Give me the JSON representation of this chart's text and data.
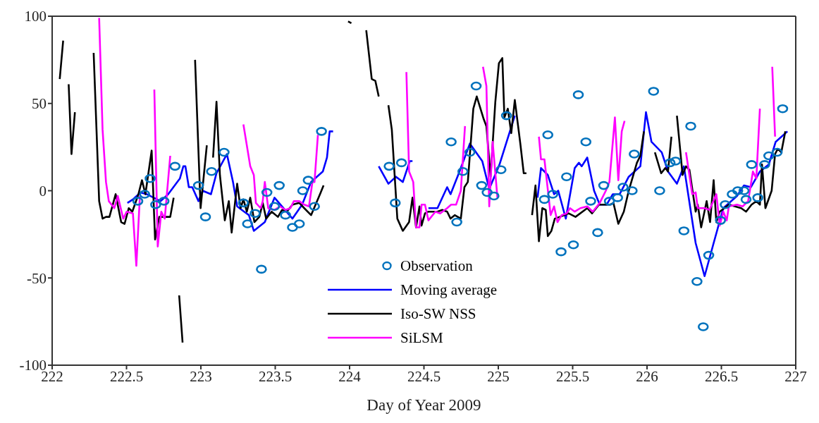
{
  "chart_data": {
    "type": "line",
    "xlabel": "Day of Year 2009",
    "xlim": [
      222,
      227
    ],
    "xticks": [
      222,
      222.5,
      223,
      223.5,
      224,
      224.5,
      225,
      225.5,
      226,
      226.5,
      227
    ],
    "ylim": [
      -100,
      100
    ],
    "yticks": [
      -100,
      -50,
      0,
      50,
      100
    ],
    "grid": false,
    "legend": "bottom",
    "series": [
      {
        "name": "Observation",
        "type": "scatter",
        "marker": "circle",
        "color": "#0072bd",
        "x": [
          222.576,
          222.622,
          222.659,
          222.696,
          222.752,
          222.826,
          222.984,
          223.031,
          223.072,
          223.156,
          223.286,
          223.314,
          223.365,
          223.407,
          223.444,
          223.495,
          223.527,
          223.569,
          223.616,
          223.662,
          223.685,
          223.722,
          223.764,
          223.811,
          224.266,
          224.307,
          224.349,
          224.683,
          224.721,
          224.762,
          224.809,
          224.851,
          224.888,
          224.925,
          224.971,
          225.018,
          225.055,
          225.31,
          225.333,
          225.366,
          225.422,
          225.459,
          225.505,
          225.538,
          225.589,
          225.621,
          225.668,
          225.709,
          225.747,
          225.802,
          225.839,
          225.9,
          225.914,
          226.044,
          226.085,
          226.155,
          226.192,
          226.248,
          226.294,
          226.336,
          226.378,
          226.415,
          226.494,
          226.526,
          226.573,
          226.61,
          226.652,
          226.666,
          226.703,
          226.745,
          226.791,
          226.819,
          226.875,
          226.912
        ],
        "values": [
          -6,
          -2,
          7,
          -8,
          -6,
          14,
          3,
          -15,
          11,
          22,
          -7,
          -19,
          -13,
          -45,
          -1,
          -9,
          3,
          -14,
          -21,
          -19,
          0,
          6,
          -9,
          34,
          14,
          -7,
          16,
          28,
          -18,
          11,
          22,
          60,
          3,
          -1,
          -3,
          12,
          43,
          -5,
          32,
          -2,
          -35,
          8,
          -31,
          55,
          28,
          -6,
          -24,
          3,
          -6,
          -4,
          2,
          0,
          21,
          57,
          0,
          16,
          17,
          -23,
          37,
          -52,
          -78,
          -37,
          -17,
          -8,
          -2,
          0,
          0,
          -5,
          15,
          -4,
          15,
          20,
          22,
          47
        ]
      },
      {
        "name": "Moving average",
        "marker": "none",
        "color": "#0000ff",
        "x": [
          222.506,
          222.543,
          222.594,
          222.636,
          222.729,
          222.78,
          222.859,
          222.882,
          222.896,
          222.919,
          222.942,
          222.984,
          223.012,
          223.068,
          223.105,
          223.175,
          223.216,
          223.244,
          223.291,
          223.323,
          223.356,
          223.43,
          223.495,
          223.616,
          223.681,
          223.741,
          223.82,
          223.848,
          223.866,
          223.889,
          224.04,
          224.196,
          224.261,
          224.312,
          224.358,
          224.405,
          224.423,
          224.48,
          224.53,
          224.591,
          224.656,
          224.679,
          224.73,
          224.809,
          224.892,
          224.939,
          225.008,
          225.111,
          225.19,
          225.264,
          225.287,
          225.333,
          225.375,
          225.403,
          225.454,
          225.514,
          225.542,
          225.561,
          225.598,
          225.644,
          225.682,
          225.728,
          225.77,
          225.816,
          225.877,
          225.955,
          225.993,
          226.03,
          226.099,
          226.141,
          226.201,
          226.248,
          226.327,
          226.387,
          226.448,
          226.513,
          226.605,
          226.652,
          226.698,
          226.759,
          226.819,
          226.865,
          226.944
        ],
        "values": [
          -7,
          -5,
          -1,
          -2,
          -6,
          -2,
          7,
          14,
          14,
          2,
          2,
          -6,
          0,
          -2,
          10,
          21,
          5,
          -9,
          -12,
          -14,
          -23,
          -18,
          -4,
          -16,
          -8,
          5,
          11,
          19,
          34,
          34,
          null,
          14,
          4,
          8,
          5,
          17,
          17,
          null,
          -10,
          -10,
          2,
          -2,
          9,
          27,
          17,
          1,
          15,
          43,
          null,
          -4,
          13,
          9,
          -2,
          0,
          -16,
          13,
          16,
          14,
          19,
          0,
          -8,
          -8,
          -2,
          -2,
          8,
          14,
          45,
          28,
          22,
          11,
          4,
          14,
          -30,
          -49,
          -30,
          -10,
          -3,
          3,
          2,
          11,
          15,
          28,
          34
        ]
      },
      {
        "name": "Iso-SW NSS",
        "marker": "none",
        "color": "#000000",
        "x": [
          222.051,
          222.074,
          222.09,
          222.111,
          222.13,
          222.153,
          222.2,
          222.279,
          222.316,
          222.339,
          222.362,
          222.385,
          222.427,
          222.464,
          222.487,
          222.515,
          222.539,
          222.58,
          222.604,
          222.627,
          222.669,
          222.692,
          222.72,
          222.752,
          222.794,
          222.817,
          222.83,
          222.854,
          222.877,
          222.92,
          222.961,
          222.998,
          223.04,
          223.06,
          223.082,
          223.105,
          223.128,
          223.161,
          223.188,
          223.207,
          223.244,
          223.267,
          223.286,
          223.309,
          223.332,
          223.36,
          223.393,
          223.416,
          223.439,
          223.476,
          223.518,
          223.546,
          223.578,
          223.616,
          223.662,
          223.695,
          223.741,
          223.801,
          223.825,
          223.9,
          223.99,
          224.012,
          224.06,
          224.112,
          224.149,
          224.173,
          224.196,
          224.23,
          224.261,
          224.284,
          224.321,
          224.358,
          224.4,
          224.423,
          224.447,
          224.47,
          224.484,
          224.507,
          224.53,
          224.591,
          224.623,
          224.656,
          224.679,
          224.707,
          224.748,
          224.772,
          224.795,
          224.832,
          224.855,
          224.902,
          224.92,
          224.948,
          224.98,
          225.004,
          225.027,
          225.041,
          225.064,
          225.087,
          225.111,
          225.148,
          225.171,
          225.189,
          225.21,
          225.227,
          225.25,
          225.273,
          225.296,
          225.319,
          225.333,
          225.357,
          225.38,
          225.445,
          225.473,
          225.519,
          225.598,
          225.63,
          225.677,
          225.751,
          225.774,
          225.807,
          225.844,
          225.877,
          225.932,
          225.955,
          225.979,
          226.02,
          226.053,
          226.095,
          226.123,
          226.141,
          226.164,
          226.18,
          226.201,
          226.239,
          226.262,
          226.285,
          226.327,
          226.341,
          226.364,
          226.401,
          226.424,
          226.448,
          226.466,
          226.489,
          226.55,
          226.633,
          226.666,
          226.703,
          226.735,
          226.759,
          226.773,
          226.796,
          226.838,
          226.861,
          226.879,
          226.903,
          226.93
        ],
        "values": [
          64,
          86,
          null,
          61,
          21,
          45,
          null,
          79,
          -6,
          -16,
          -15,
          -15,
          -2,
          -18,
          -19,
          -10,
          -12,
          -2,
          6,
          -2,
          23,
          -28,
          -15,
          -15,
          -15,
          -4,
          null,
          -60,
          -87,
          null,
          75,
          -10,
          26,
          null,
          19,
          51,
          9,
          -17,
          -6,
          -24,
          4,
          -10,
          -5,
          -12,
          -4,
          -18,
          -15,
          -7,
          -16,
          -12,
          -15,
          -11,
          -12,
          -8,
          -7,
          -10,
          -14,
          -2,
          3,
          null,
          97,
          96,
          null,
          92,
          64,
          63,
          54,
          null,
          49,
          35,
          -16,
          -23,
          -18,
          -4,
          -21,
          -9,
          -20,
          -13,
          -12,
          -12,
          -11,
          -12,
          -16,
          -14,
          -16,
          2,
          5,
          47,
          54,
          41,
          37,
          8,
          51,
          73,
          76,
          42,
          47,
          33,
          52,
          27,
          10,
          10,
          null,
          -14,
          3,
          -29,
          -10,
          -11,
          -26,
          -23,
          -16,
          -14,
          -13,
          -15,
          -10,
          -13,
          -8,
          -8,
          -7,
          -19,
          -12,
          0,
          16,
          20,
          34,
          null,
          22,
          10,
          13,
          11,
          31,
          null,
          43,
          9,
          14,
          12,
          -12,
          -8,
          -21,
          -6,
          -18,
          6,
          -18,
          -12,
          -8,
          -10,
          -12,
          -8,
          -6,
          -8,
          15,
          -10,
          0,
          21,
          24,
          22,
          34
        ]
      },
      {
        "name": "SiLSM",
        "marker": "none",
        "color": "#ff00ff",
        "x": [
          222.316,
          222.339,
          222.362,
          222.381,
          222.418,
          222.441,
          222.478,
          222.501,
          222.543,
          222.566,
          222.59,
          222.64,
          222.687,
          222.71,
          222.734,
          222.757,
          222.794,
          223.0,
          223.286,
          223.332,
          223.356,
          223.37,
          223.402,
          223.416,
          223.43,
          223.453,
          223.495,
          223.532,
          223.569,
          223.602,
          223.625,
          223.662,
          223.695,
          223.727,
          223.75,
          223.764,
          223.787,
          224.0,
          224.382,
          224.4,
          224.428,
          224.447,
          224.47,
          224.484,
          224.507,
          224.53,
          224.577,
          224.609,
          224.656,
          224.683,
          224.716,
          224.748,
          224.776,
          224.85,
          224.897,
          224.92,
          224.939,
          224.962,
          224.994,
          225.1,
          225.273,
          225.287,
          225.31,
          225.352,
          225.375,
          225.398,
          225.426,
          225.459,
          225.482,
          225.514,
          225.552,
          225.598,
          225.635,
          225.682,
          225.723,
          225.747,
          225.784,
          225.807,
          225.83,
          225.849,
          226.0,
          226.262,
          226.304,
          226.327,
          226.341,
          226.387,
          226.42,
          226.466,
          226.489,
          226.513,
          226.536,
          226.55,
          226.605,
          226.643,
          226.68,
          226.712,
          226.735,
          226.759,
          226.8,
          226.842,
          226.861
        ],
        "values": [
          99,
          35,
          5,
          -6,
          -10,
          -3,
          -16,
          -12,
          -13,
          -43,
          -3,
          null,
          58,
          -32,
          -12,
          -16,
          20,
          null,
          38,
          14,
          9,
          -7,
          -10,
          -6,
          5,
          -10,
          -11,
          -9,
          -11,
          -10,
          -6,
          -6,
          -8,
          -9,
          5,
          5,
          32,
          null,
          68,
          11,
          5,
          -21,
          -21,
          -8,
          -8,
          -17,
          -12,
          -13,
          -10,
          -8,
          -8,
          0,
          37,
          null,
          71,
          60,
          -9,
          28,
          -4,
          null,
          31,
          18,
          18,
          -14,
          -9,
          -18,
          -14,
          -13,
          -10,
          -12,
          -10,
          -9,
          -12,
          -7,
          0,
          5,
          42,
          6,
          34,
          40,
          null,
          22,
          -2,
          -1,
          -10,
          -10,
          -11,
          -2,
          -20,
          -12,
          -17,
          -9,
          -8,
          -9,
          -6,
          11,
          7,
          47,
          null,
          71,
          31
        ]
      }
    ]
  }
}
